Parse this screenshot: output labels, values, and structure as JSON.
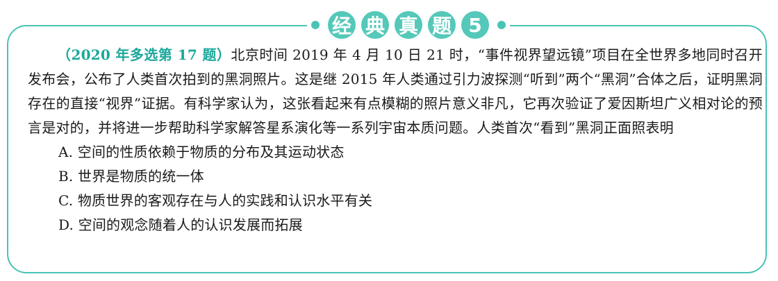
{
  "header": {
    "chars": [
      "经",
      "典",
      "真",
      "题",
      "5"
    ]
  },
  "question": {
    "tag": "（2020 年多选第 17 题）",
    "text": "北京时间 2019 年 4 月 10 日 21 时，“事件视界望远镜”项目在全世界多地同时召开发布会，公布了人类首次拍到的黑洞照片。这是继 2015 年人类通过引力波探测“听到”两个“黑洞”合体之后，证明黑洞存在的直接“视界”证据。有科学家认为，这张看起来有点模糊的照片意义非凡，它再次验证了爱因斯坦广义相对论的预言是对的，并将进一步帮助科学家解答星系演化等一系列宇宙本质问题。人类首次“看到”黑洞正面照表明"
  },
  "options": [
    "A. 空间的性质依赖于物质的分布及其运动状态",
    "B. 世界是物质的统一体",
    "C. 物质世界的客观存在与人的实践和认识水平有关",
    "D. 空间的观念随着人的认识发展而拓展"
  ],
  "colors": {
    "accent": "#49c3b4",
    "tag": "#1aa89a"
  }
}
